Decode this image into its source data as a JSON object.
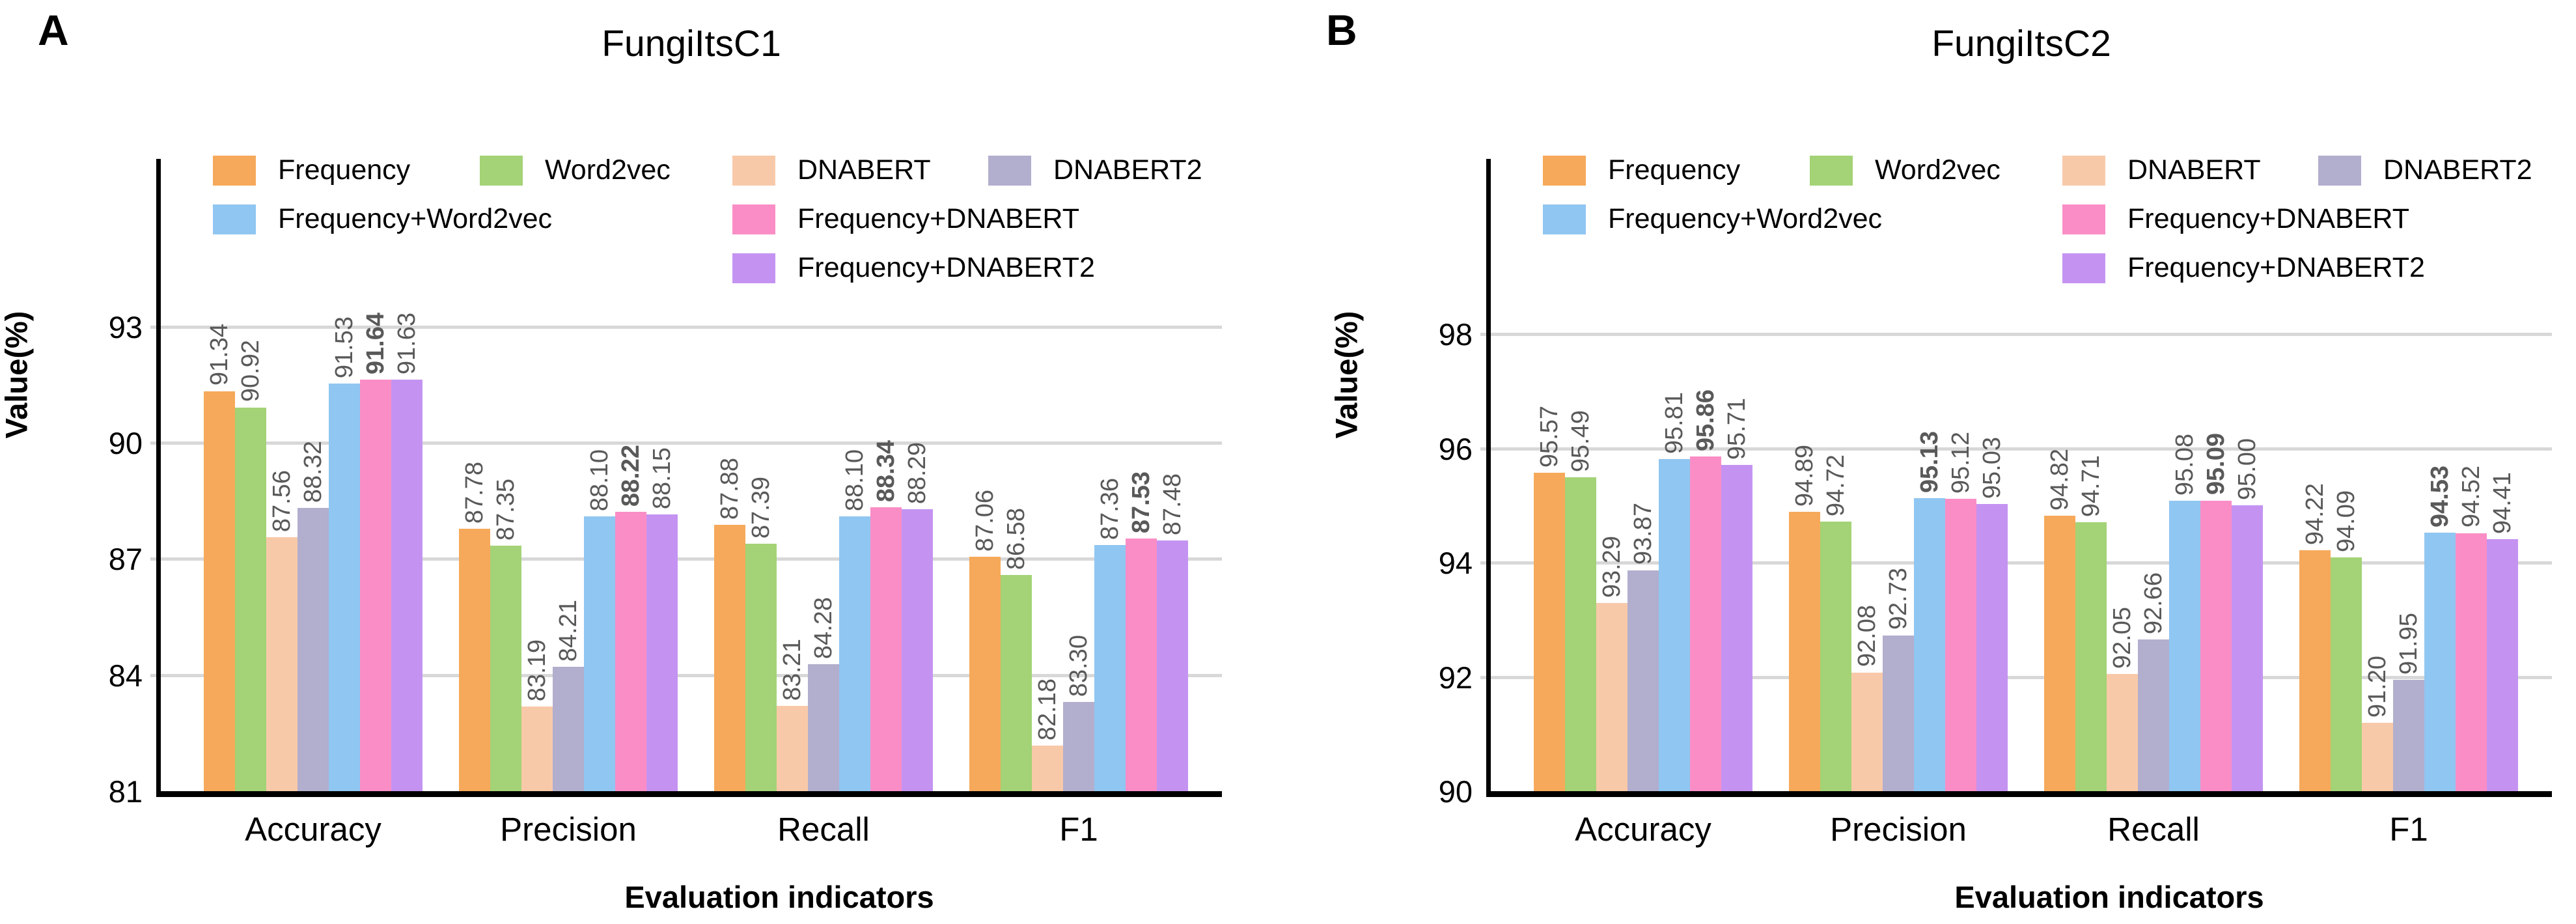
{
  "chart_data": [
    {
      "type": "bar",
      "panel_letter": "A",
      "title": "FungiItsC1",
      "ylabel": "Value(%)",
      "xlabel": "Evaluation indicators",
      "categories": [
        "Accuracy",
        "Precision",
        "Recall",
        "F1"
      ],
      "ylim": [
        81,
        97.34
      ],
      "yticks": [
        81,
        84,
        87,
        90,
        93
      ],
      "grid": true,
      "legend_position": "inside-top",
      "bold_rule": "max-per-category",
      "series": [
        {
          "name": "Frequency",
          "color": "#F6A95A",
          "values": [
            "91.34",
            "87.78",
            "87.88",
            "87.06"
          ]
        },
        {
          "name": "Word2vec",
          "color": "#A3D376",
          "values": [
            "90.92",
            "87.35",
            "87.39",
            "86.58"
          ]
        },
        {
          "name": "DNABERT",
          "color": "#F8C9A9",
          "values": [
            "87.56",
            "83.19",
            "83.21",
            "82.18"
          ]
        },
        {
          "name": "DNABERT2",
          "color": "#B2AECD",
          "values": [
            "88.32",
            "84.21",
            "84.28",
            "83.30"
          ]
        },
        {
          "name": "Frequency+Word2vec",
          "color": "#90C6F2",
          "values": [
            "91.53",
            "88.10",
            "88.10",
            "87.36"
          ]
        },
        {
          "name": "Frequency+DNABERT",
          "color": "#FA8DC6",
          "values": [
            "91.64",
            "88.22",
            "88.34",
            "87.53"
          ]
        },
        {
          "name": "Frequency+DNABERT2",
          "color": "#C493F2",
          "values": [
            "91.63",
            "88.15",
            "88.29",
            "87.48"
          ]
        }
      ]
    },
    {
      "type": "bar",
      "panel_letter": "B",
      "title": "FungiItsC2",
      "ylabel": "Value(%)",
      "xlabel": "Evaluation indicators",
      "categories": [
        "Accuracy",
        "Precision",
        "Recall",
        "F1"
      ],
      "ylim": [
        90,
        101.07
      ],
      "yticks": [
        90,
        92,
        94,
        96,
        98
      ],
      "grid": true,
      "legend_position": "inside-top",
      "bold_rule": "max-per-category",
      "series": [
        {
          "name": "Frequency",
          "color": "#F6A95A",
          "values": [
            "95.57",
            "94.89",
            "94.82",
            "94.22"
          ]
        },
        {
          "name": "Word2vec",
          "color": "#A3D376",
          "values": [
            "95.49",
            "94.72",
            "94.71",
            "94.09"
          ]
        },
        {
          "name": "DNABERT",
          "color": "#F8C9A9",
          "values": [
            "93.29",
            "92.08",
            "92.05",
            "91.20"
          ]
        },
        {
          "name": "DNABERT2",
          "color": "#B2AECD",
          "values": [
            "93.87",
            "92.73",
            "92.66",
            "91.95"
          ]
        },
        {
          "name": "Frequency+Word2vec",
          "color": "#90C6F2",
          "values": [
            "95.81",
            "95.13",
            "95.08",
            "94.53"
          ]
        },
        {
          "name": "Frequency+DNABERT",
          "color": "#FA8DC6",
          "values": [
            "95.86",
            "95.12",
            "95.09",
            "94.52"
          ]
        },
        {
          "name": "Frequency+DNABERT2",
          "color": "#C493F2",
          "values": [
            "95.71",
            "95.03",
            "95.00",
            "94.41"
          ]
        }
      ]
    }
  ]
}
